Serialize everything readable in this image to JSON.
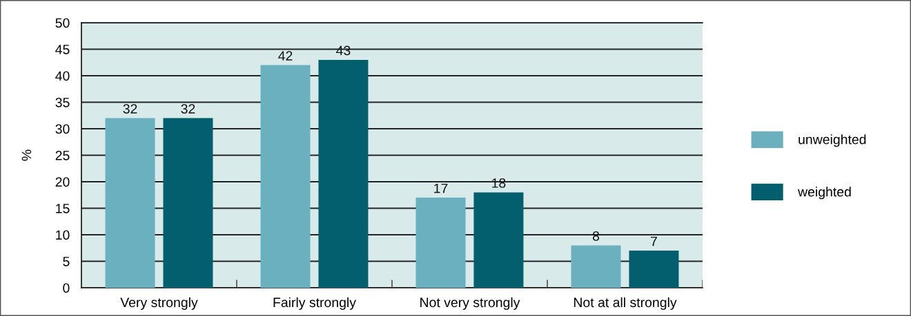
{
  "chart_data": {
    "type": "bar",
    "ylabel": "%",
    "categories": [
      "Very strongly",
      "Fairly strongly",
      "Not very strongly",
      "Not at all strongly"
    ],
    "series": [
      {
        "name": "unweighted",
        "color": "#6ab0bf",
        "values": [
          32,
          42,
          17,
          8
        ]
      },
      {
        "name": "weighted",
        "color": "#035e6e",
        "values": [
          32,
          43,
          18,
          7
        ]
      }
    ],
    "ylim": [
      0,
      50
    ],
    "yticks": [
      0,
      5,
      10,
      15,
      20,
      25,
      30,
      35,
      40,
      45,
      50
    ],
    "grid": "y",
    "legend": "right",
    "data_labels": true
  }
}
